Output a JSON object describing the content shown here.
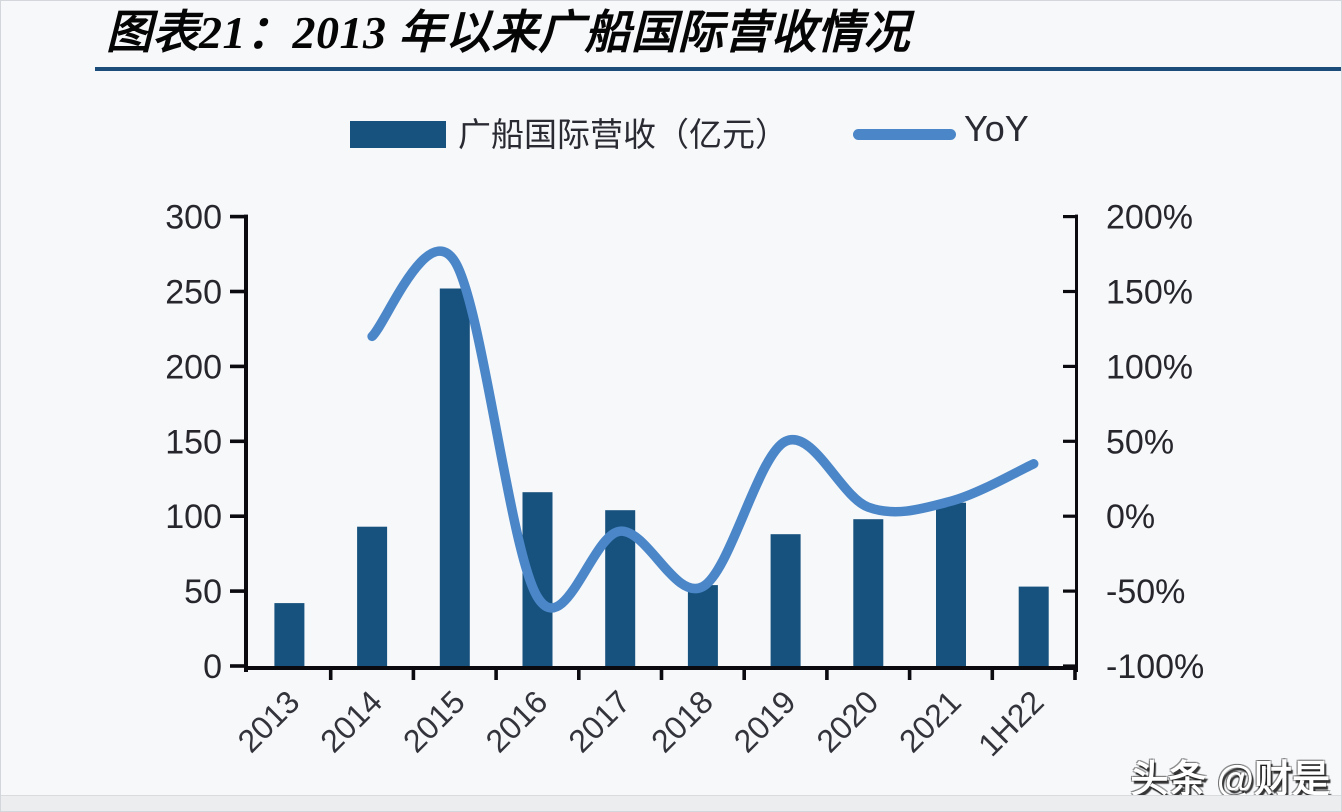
{
  "figure": {
    "title": "图表21：2013 年以来广船国际营收情况",
    "watermark": "头条 @财是"
  },
  "legend": {
    "revenue_label": "广船国际营收（亿元）",
    "yoy_label": "YoY"
  },
  "chart_data": {
    "type": "bar",
    "subtype": "bar+line combo, dual axis",
    "categories": [
      "2013",
      "2014",
      "2015",
      "2016",
      "2017",
      "2018",
      "2019",
      "2020",
      "2021",
      "1H22"
    ],
    "series": [
      {
        "name": "广船国际营收（亿元）",
        "type": "bar",
        "axis": "left",
        "color": "#17517d",
        "values": [
          42,
          93,
          252,
          116,
          104,
          54,
          88,
          98,
          109,
          53
        ]
      },
      {
        "name": "YoY",
        "type": "line",
        "axis": "right",
        "color": "#4a86c8",
        "unit": "%",
        "values": [
          null,
          120,
          170,
          -54,
          -10,
          -47,
          50,
          6,
          10,
          35
        ]
      }
    ],
    "left_axis": {
      "range": [
        0,
        300
      ],
      "tick_step": 50,
      "tick_labels": [
        "0",
        "50",
        "100",
        "150",
        "200",
        "250",
        "300"
      ]
    },
    "right_axis": {
      "range": [
        -100,
        200
      ],
      "tick_step": 50,
      "tick_labels": [
        "-100%",
        "-50%",
        "0%",
        "50%",
        "100%",
        "150%",
        "200%"
      ]
    },
    "grid": "off",
    "legend_position": "top-center",
    "x_label_rotation_deg": -45
  },
  "style": {
    "bar_color": "#17517d",
    "line_color": "#4a86c8",
    "axis_color": "#0b0b0f",
    "tick_label_color": "#26262c",
    "x_label_color": "#33333b",
    "title_color": "#050505",
    "underline_color": "#1c4d7a",
    "background_color": "#f6f8fa"
  }
}
